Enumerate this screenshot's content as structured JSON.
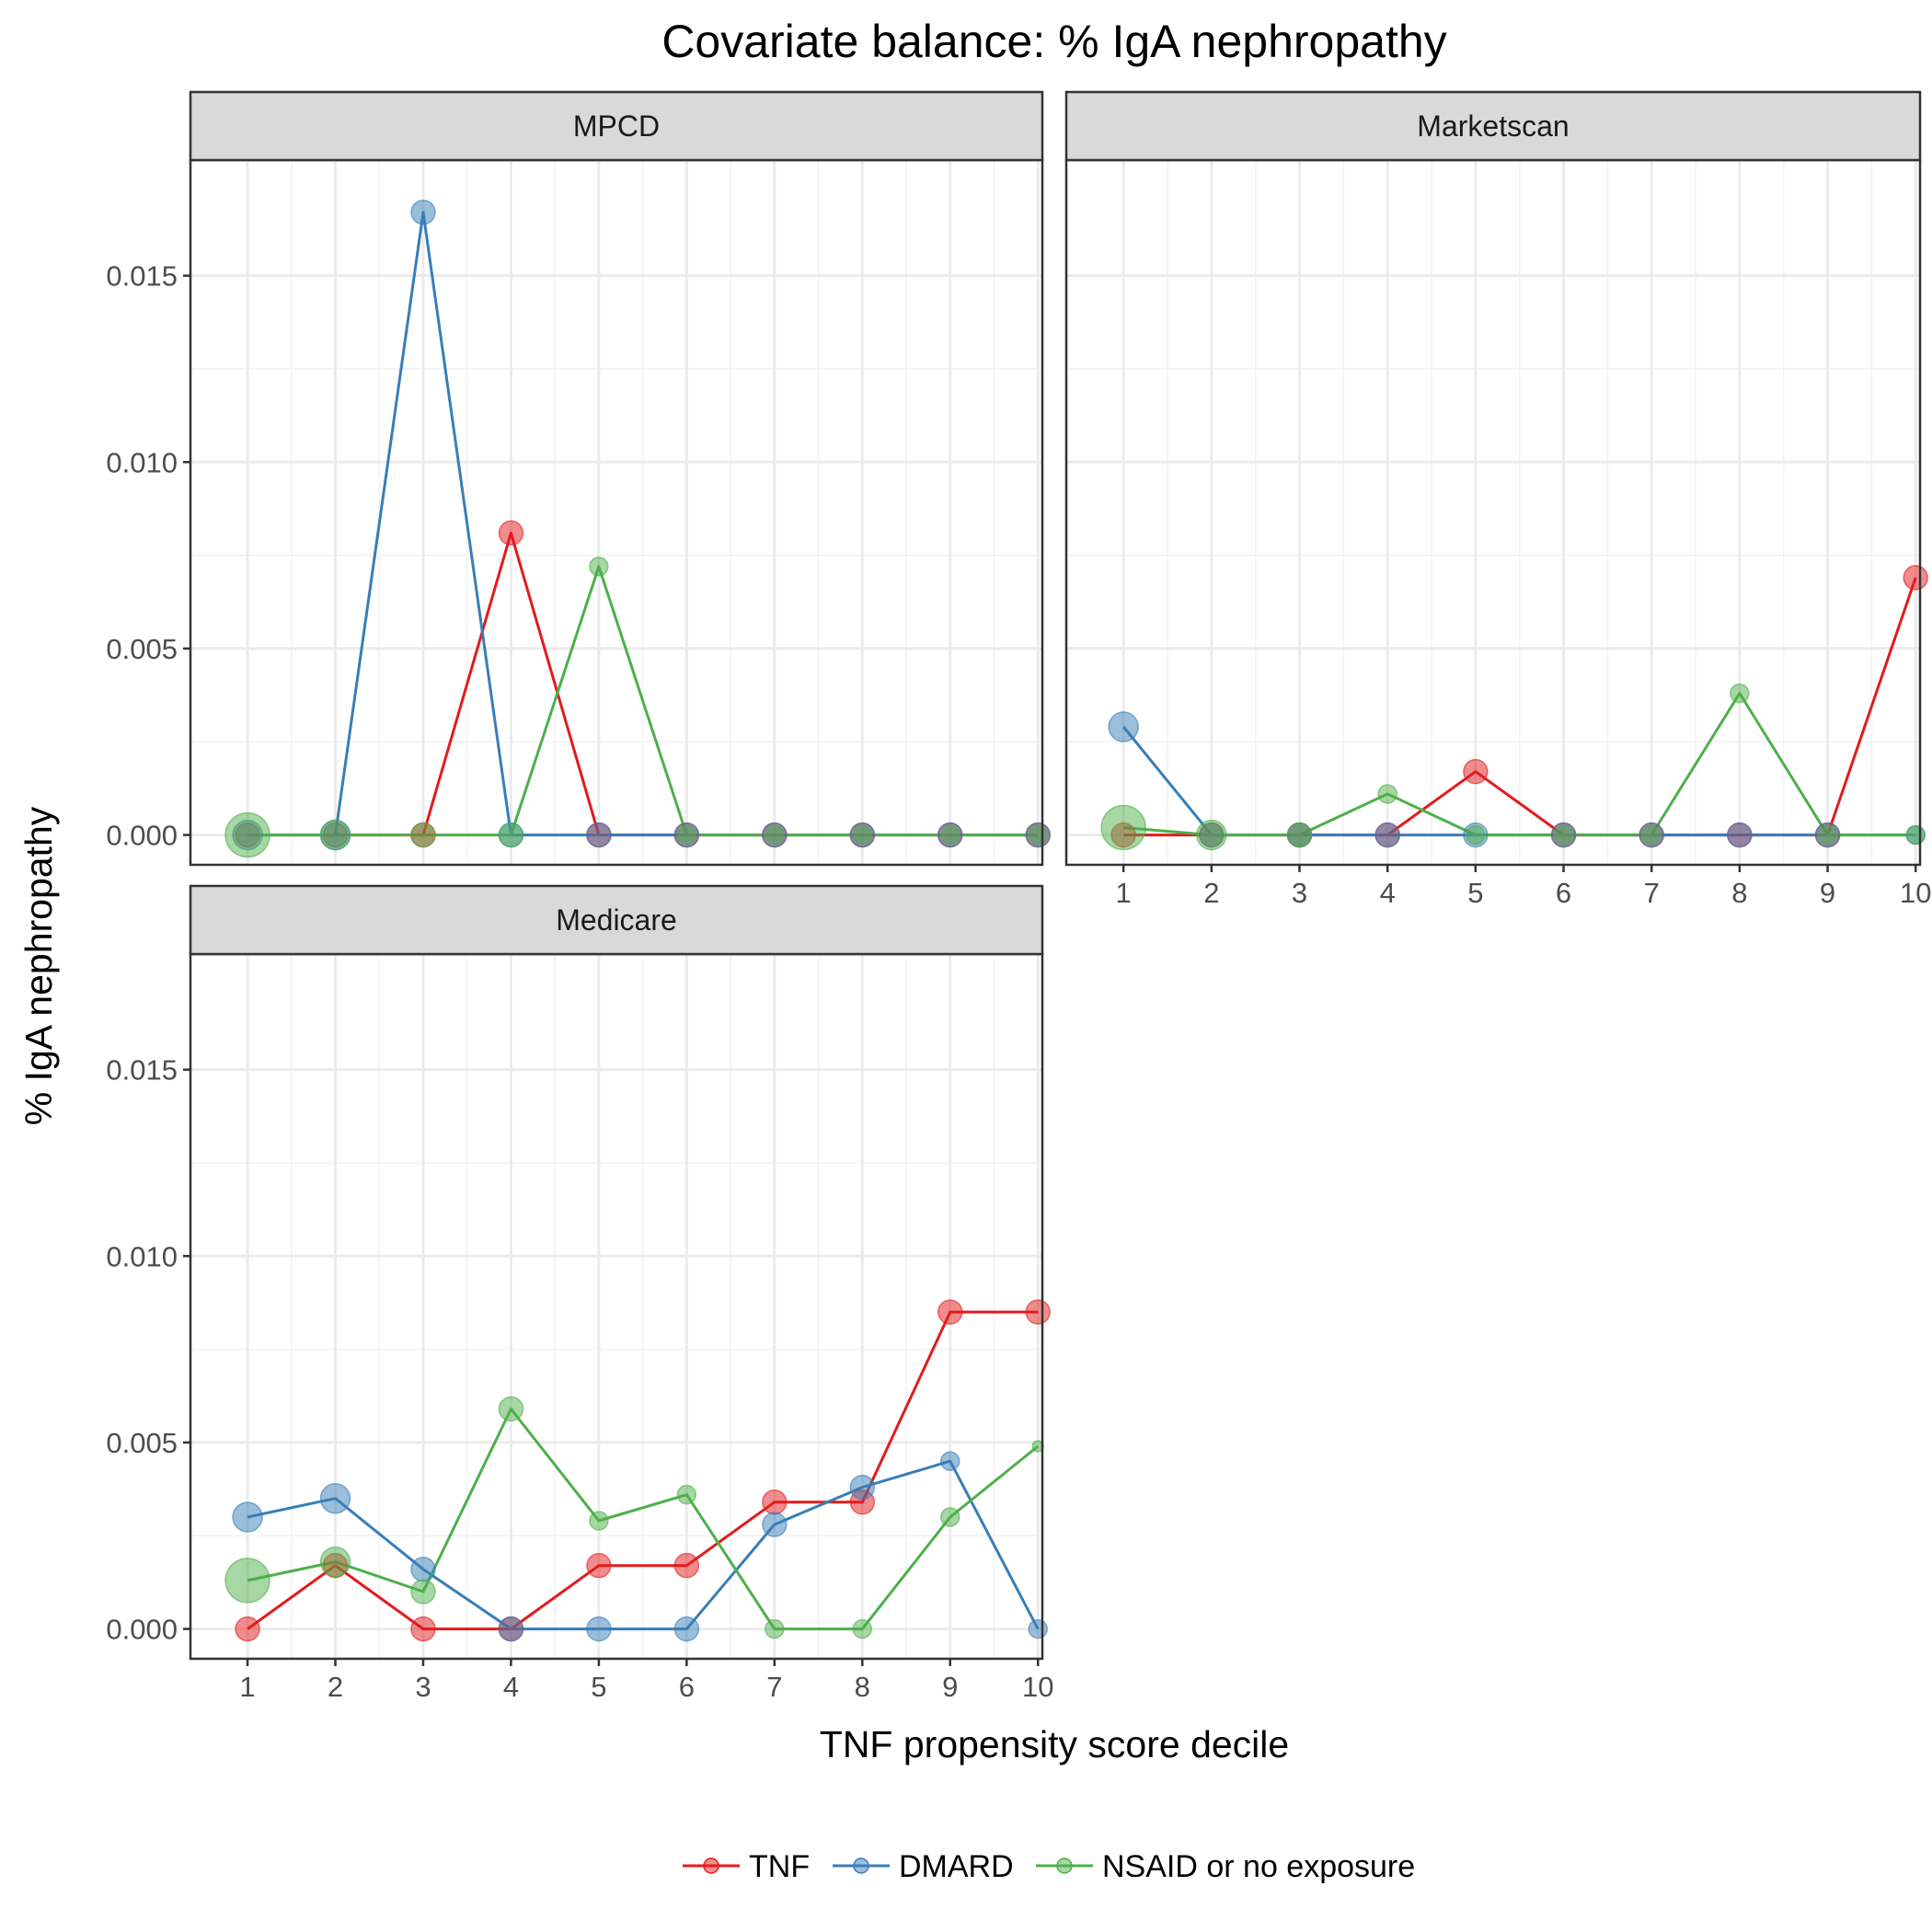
{
  "chart_data": {
    "type": "line",
    "title": "Covariate balance: % IgA nephropathy",
    "xlabel": "TNF propensity score decile",
    "ylabel": "% IgA nephropathy",
    "x": [
      1,
      2,
      3,
      4,
      5,
      6,
      7,
      8,
      9,
      10
    ],
    "xticks": [
      "1",
      "2",
      "3",
      "4",
      "5",
      "6",
      "7",
      "8",
      "9",
      "10"
    ],
    "ylim": [
      -0.0008,
      0.0181
    ],
    "yticks": [
      "0.000",
      "0.005",
      "0.010",
      "0.015"
    ],
    "ytick_values": [
      0,
      0.005,
      0.01,
      0.015
    ],
    "grid": true,
    "legend_position": "bottom",
    "series_styles": [
      {
        "name": "TNF",
        "color": "#e41a1c"
      },
      {
        "name": "DMARD",
        "color": "#377eb8"
      },
      {
        "name": "NSAID or no exposure",
        "color": "#4daf4a"
      }
    ],
    "panels": [
      {
        "label": "MPCD",
        "series": [
          {
            "name": "TNF",
            "values": [
              0,
              0,
              0,
              0.0081,
              0,
              0,
              0,
              0,
              0,
              0
            ],
            "sizes": [
              2,
              2,
              2,
              2,
              2,
              2,
              2,
              2,
              2,
              2
            ]
          },
          {
            "name": "DMARD",
            "values": [
              0,
              0,
              0.0167,
              0,
              0,
              0,
              0,
              0,
              0,
              0
            ],
            "sizes": [
              3,
              3,
              2,
              2,
              2,
              2,
              2,
              2,
              2,
              2
            ]
          },
          {
            "name": "NSAID or no exposure",
            "values": [
              0,
              0,
              0,
              0,
              0.0072,
              0,
              0,
              0,
              0,
              0
            ],
            "sizes": [
              7,
              3,
              2,
              2,
              1,
              1,
              1,
              1,
              1,
              1
            ]
          }
        ]
      },
      {
        "label": "Marketscan",
        "series": [
          {
            "name": "TNF",
            "values": [
              0,
              0,
              0,
              0,
              0.0017,
              0,
              0,
              0,
              0,
              0.0069
            ],
            "sizes": [
              2,
              2,
              2,
              2,
              2,
              2,
              2,
              2,
              2,
              2
            ]
          },
          {
            "name": "DMARD",
            "values": [
              0.0029,
              0,
              0,
              0,
              0,
              0,
              0,
              0,
              0,
              0
            ],
            "sizes": [
              3,
              2,
              2,
              2,
              2,
              2,
              2,
              2,
              2,
              1
            ]
          },
          {
            "name": "NSAID or no exposure",
            "values": [
              0.0002,
              0,
              0,
              0.0011,
              0,
              0,
              0,
              0.0038,
              0,
              0
            ],
            "sizes": [
              7,
              3,
              2,
              1,
              1,
              1,
              1,
              1,
              1,
              1
            ]
          }
        ]
      },
      {
        "label": "Medicare",
        "series": [
          {
            "name": "TNF",
            "values": [
              0,
              0.0017,
              0,
              0,
              0.0017,
              0.0017,
              0.0034,
              0.0034,
              0.0085,
              0.0085
            ],
            "sizes": [
              2,
              2,
              2,
              2,
              2,
              2,
              2,
              2,
              2,
              2
            ]
          },
          {
            "name": "DMARD",
            "values": [
              0.003,
              0.0035,
              0.0016,
              0,
              0,
              0,
              0.0028,
              0.0038,
              0.0045,
              0
            ],
            "sizes": [
              3,
              3,
              2,
              2,
              2,
              2,
              2,
              2,
              1,
              1
            ]
          },
          {
            "name": "NSAID or no exposure",
            "values": [
              0.0013,
              0.0018,
              0.001,
              0.0059,
              0.0029,
              0.0036,
              0,
              0,
              0.003,
              0.0049
            ],
            "sizes": [
              7,
              3,
              2,
              2,
              1,
              1,
              1,
              1,
              1,
              0
            ]
          }
        ]
      }
    ]
  }
}
